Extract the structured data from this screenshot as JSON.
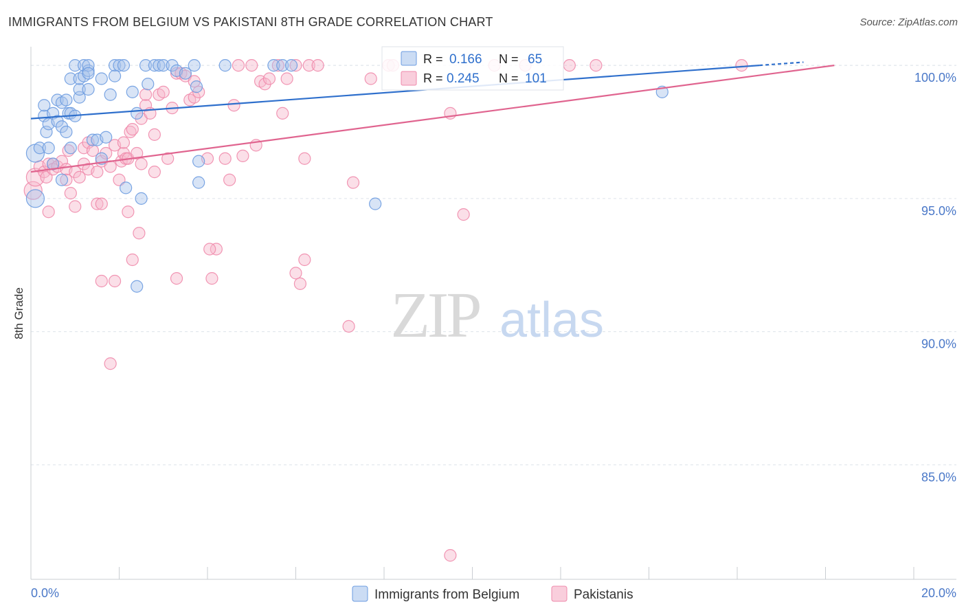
{
  "title": "IMMIGRANTS FROM BELGIUM VS PAKISTANI 8TH GRADE CORRELATION CHART",
  "source": "Source: ZipAtlas.com",
  "watermark": {
    "zip": "ZIP",
    "atlas": "atlas"
  },
  "colors": {
    "blue_fill": "#a9c4ec",
    "blue_stroke": "#6b9be0",
    "blue_line": "#2e6fcc",
    "pink_fill": "#f7b9cd",
    "pink_stroke": "#ef8aab",
    "pink_line": "#e0648f",
    "axis_text": "#4a78c8",
    "grid": "#dde3ea"
  },
  "chart_data": {
    "type": "scatter",
    "title": "IMMIGRANTS FROM BELGIUM VS PAKISTANI 8TH GRADE CORRELATION CHART",
    "xlabel": "",
    "ylabel": "8th Grade",
    "xlim": [
      0,
      20
    ],
    "ylim": [
      80.7,
      100.7
    ],
    "x_tick_labels": [
      "0.0%",
      "20.0%"
    ],
    "y_ticks": [
      85,
      90,
      95,
      100
    ],
    "y_tick_labels": [
      "85.0%",
      "90.0%",
      "95.0%",
      "100.0%"
    ],
    "legend": [
      {
        "name": "Immigrants from Belgium",
        "R_label": "R = ",
        "R": "0.166",
        "N_label": "N = ",
        "N": "65"
      },
      {
        "name": "Pakistanis",
        "R_label": "R = ",
        "R": "0.245",
        "N_label": "N = ",
        "N": "101"
      }
    ],
    "series": [
      {
        "name": "Immigrants from Belgium",
        "trend": {
          "x": [
            0,
            16.5
          ],
          "y": [
            98.0,
            100.0
          ],
          "dash_to": [
            17.5,
            100.12
          ]
        },
        "points": [
          [
            0.1,
            95.0
          ],
          [
            0.1,
            96.7
          ],
          [
            0.2,
            96.9
          ],
          [
            0.3,
            98.1
          ],
          [
            0.3,
            98.5
          ],
          [
            0.35,
            97.5
          ],
          [
            0.4,
            96.9
          ],
          [
            0.4,
            97.8
          ],
          [
            0.5,
            98.2
          ],
          [
            0.5,
            96.3
          ],
          [
            0.6,
            97.9
          ],
          [
            0.6,
            98.7
          ],
          [
            0.7,
            97.7
          ],
          [
            0.7,
            95.7
          ],
          [
            0.7,
            98.6
          ],
          [
            0.8,
            97.5
          ],
          [
            0.8,
            98.7
          ],
          [
            0.85,
            98.2
          ],
          [
            0.9,
            96.9
          ],
          [
            0.9,
            99.5
          ],
          [
            0.9,
            98.2
          ],
          [
            1.0,
            98.1
          ],
          [
            1.0,
            100.0
          ],
          [
            1.1,
            98.8
          ],
          [
            1.1,
            99.1
          ],
          [
            1.1,
            99.5
          ],
          [
            1.2,
            99.6
          ],
          [
            1.2,
            100.0
          ],
          [
            1.3,
            99.8
          ],
          [
            1.3,
            100.0
          ],
          [
            1.3,
            99.7
          ],
          [
            1.3,
            99.1
          ],
          [
            1.4,
            97.2
          ],
          [
            1.5,
            97.2
          ],
          [
            1.6,
            96.5
          ],
          [
            1.6,
            99.5
          ],
          [
            1.7,
            97.3
          ],
          [
            1.8,
            98.9
          ],
          [
            1.9,
            100.0
          ],
          [
            1.9,
            99.6
          ],
          [
            2.0,
            100.0
          ],
          [
            2.1,
            100.0
          ],
          [
            2.15,
            95.4
          ],
          [
            2.3,
            99.0
          ],
          [
            2.4,
            98.2
          ],
          [
            2.4,
            91.7
          ],
          [
            2.5,
            95.0
          ],
          [
            2.6,
            100.0
          ],
          [
            2.65,
            99.3
          ],
          [
            2.8,
            100.0
          ],
          [
            2.9,
            100.0
          ],
          [
            3.0,
            100.0
          ],
          [
            3.2,
            100.0
          ],
          [
            3.3,
            99.8
          ],
          [
            3.5,
            99.7
          ],
          [
            3.7,
            100.0
          ],
          [
            3.8,
            96.4
          ],
          [
            3.8,
            95.6
          ],
          [
            4.4,
            100.0
          ],
          [
            5.5,
            100.0
          ],
          [
            5.7,
            100.0
          ],
          [
            5.9,
            100.0
          ],
          [
            7.8,
            94.8
          ],
          [
            14.3,
            99.0
          ],
          [
            3.75,
            99.2
          ]
        ]
      },
      {
        "name": "Pakistanis",
        "trend": {
          "x": [
            0,
            18.2
          ],
          "y": [
            96.0,
            100.0
          ]
        },
        "points": [
          [
            0.05,
            95.3
          ],
          [
            0.1,
            95.8
          ],
          [
            0.2,
            96.2
          ],
          [
            0.3,
            96.0
          ],
          [
            0.35,
            95.8
          ],
          [
            0.4,
            96.3
          ],
          [
            0.4,
            94.5
          ],
          [
            0.5,
            96.3
          ],
          [
            0.5,
            96.1
          ],
          [
            0.6,
            96.2
          ],
          [
            0.7,
            96.4
          ],
          [
            0.8,
            96.1
          ],
          [
            0.8,
            95.7
          ],
          [
            0.85,
            96.8
          ],
          [
            0.9,
            95.2
          ],
          [
            1.0,
            94.7
          ],
          [
            1.0,
            96.0
          ],
          [
            1.1,
            95.8
          ],
          [
            1.2,
            96.3
          ],
          [
            1.2,
            96.9
          ],
          [
            1.3,
            97.1
          ],
          [
            1.3,
            96.1
          ],
          [
            1.4,
            96.8
          ],
          [
            1.5,
            96.0
          ],
          [
            1.5,
            94.8
          ],
          [
            1.6,
            94.8
          ],
          [
            1.6,
            96.4
          ],
          [
            1.7,
            96.7
          ],
          [
            1.8,
            96.2
          ],
          [
            1.9,
            97.0
          ],
          [
            1.9,
            91.9
          ],
          [
            2.0,
            95.7
          ],
          [
            2.05,
            96.4
          ],
          [
            2.1,
            96.7
          ],
          [
            2.1,
            97.1
          ],
          [
            2.15,
            96.5
          ],
          [
            2.2,
            94.5
          ],
          [
            2.2,
            96.5
          ],
          [
            2.25,
            97.5
          ],
          [
            2.3,
            97.6
          ],
          [
            2.4,
            96.7
          ],
          [
            2.5,
            98.0
          ],
          [
            2.5,
            96.3
          ],
          [
            2.6,
            98.5
          ],
          [
            2.6,
            98.9
          ],
          [
            2.7,
            98.2
          ],
          [
            2.8,
            97.4
          ],
          [
            2.8,
            96.0
          ],
          [
            2.9,
            98.9
          ],
          [
            3.0,
            99.0
          ],
          [
            3.1,
            96.5
          ],
          [
            3.2,
            98.4
          ],
          [
            3.3,
            99.7
          ],
          [
            3.4,
            99.7
          ],
          [
            3.5,
            99.6
          ],
          [
            3.6,
            98.7
          ],
          [
            3.7,
            99.4
          ],
          [
            3.7,
            98.8
          ],
          [
            3.8,
            99.0
          ],
          [
            4.1,
            92.0
          ],
          [
            4.0,
            96.5
          ],
          [
            4.2,
            93.1
          ],
          [
            4.4,
            96.5
          ],
          [
            4.5,
            95.7
          ],
          [
            4.6,
            98.5
          ],
          [
            4.7,
            100.0
          ],
          [
            4.8,
            96.6
          ],
          [
            5.0,
            100.0
          ],
          [
            5.1,
            97.0
          ],
          [
            5.2,
            99.4
          ],
          [
            5.3,
            99.3
          ],
          [
            5.4,
            99.5
          ],
          [
            5.6,
            100.0
          ],
          [
            5.7,
            98.2
          ],
          [
            5.8,
            99.5
          ],
          [
            6.0,
            100.0
          ],
          [
            6.2,
            92.7
          ],
          [
            6.2,
            96.5
          ],
          [
            6.3,
            100.0
          ],
          [
            6.5,
            100.0
          ],
          [
            7.2,
            90.2
          ],
          [
            7.3,
            95.6
          ],
          [
            7.7,
            99.5
          ],
          [
            8.1,
            100.0
          ],
          [
            8.2,
            100.0
          ],
          [
            9.5,
            98.2
          ],
          [
            9.8,
            94.4
          ],
          [
            10.5,
            100.0
          ],
          [
            11.2,
            100.0
          ],
          [
            12.2,
            100.0
          ],
          [
            12.8,
            100.0
          ],
          [
            16.1,
            100.0
          ],
          [
            3.3,
            92.0
          ],
          [
            4.05,
            93.1
          ],
          [
            6.0,
            92.2
          ],
          [
            6.1,
            91.8
          ],
          [
            2.45,
            93.7
          ],
          [
            1.8,
            88.8
          ],
          [
            9.5,
            81.6
          ],
          [
            2.3,
            92.7
          ],
          [
            1.6,
            91.9
          ]
        ]
      }
    ]
  }
}
